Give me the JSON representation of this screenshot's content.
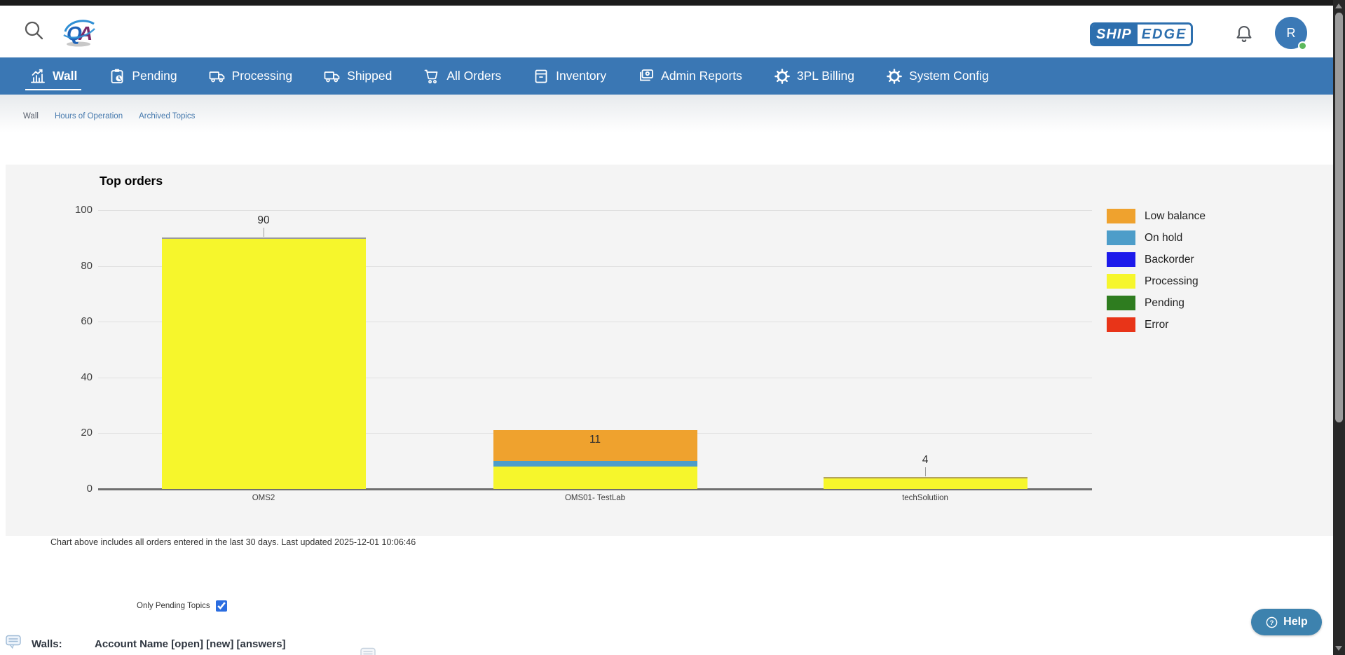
{
  "top_bar": {
    "qa_logo_text": "QA",
    "brand": {
      "ship": "SHIP",
      "edge": "EDGE"
    },
    "avatar": {
      "initial": "R",
      "status": "online"
    }
  },
  "nav": {
    "items": [
      {
        "label": "Wall",
        "icon": "chart-icon",
        "active": true
      },
      {
        "label": "Pending",
        "icon": "clipboard-clock-icon",
        "active": false
      },
      {
        "label": "Processing",
        "icon": "truck-icon",
        "active": false
      },
      {
        "label": "Shipped",
        "icon": "truck-icon",
        "active": false
      },
      {
        "label": "All Orders",
        "icon": "cart-icon",
        "active": false
      },
      {
        "label": "Inventory",
        "icon": "box-icon",
        "active": false
      },
      {
        "label": "Admin Reports",
        "icon": "report-screen-icon",
        "active": false
      },
      {
        "label": "3PL Billing",
        "icon": "gear-icon",
        "active": false
      },
      {
        "label": "System Config",
        "icon": "gear-icon",
        "active": false
      }
    ]
  },
  "breadcrumb": [
    {
      "label": "Wall",
      "link": false
    },
    {
      "label": "Hours of Operation",
      "link": true
    },
    {
      "label": "Archived Topics",
      "link": true
    }
  ],
  "chart_data": {
    "type": "bar",
    "stacked": true,
    "title": "Top orders",
    "categories": [
      "OMS2",
      "OMS01- TestLab",
      "techSolutiion"
    ],
    "series": [
      {
        "name": "Low balance",
        "color": "#EFA22E",
        "values": [
          0,
          11,
          0
        ]
      },
      {
        "name": "On hold",
        "color": "#4D9DC9",
        "values": [
          0,
          2,
          0
        ]
      },
      {
        "name": "Backorder",
        "color": "#1C1AEB",
        "values": [
          0,
          0,
          0
        ]
      },
      {
        "name": "Processing",
        "color": "#F6F62C",
        "values": [
          90,
          8,
          4
        ]
      },
      {
        "name": "Pending",
        "color": "#2E7C1F",
        "values": [
          0,
          0,
          0
        ]
      },
      {
        "name": "Error",
        "color": "#E83418",
        "values": [
          0,
          0,
          0
        ]
      }
    ],
    "stack_order_bottom_up": [
      "Processing",
      "On hold",
      "Low balance",
      "Backorder",
      "Pending",
      "Error"
    ],
    "bar_annotations": [
      "90",
      "11",
      "4"
    ],
    "annotation_placements": [
      "above",
      "inside",
      "above"
    ],
    "bar_top_borders": [
      "#9a9a9a",
      null,
      "#b3a35e"
    ],
    "ylim": [
      0,
      100
    ],
    "yticks": [
      0,
      20,
      40,
      60,
      80,
      100
    ],
    "grid": true,
    "legend_position": "right",
    "plot_background": "#f4f4f4"
  },
  "chart_note": "Chart above includes all orders entered in the last 30 days. Last updated 2025-12-01 10:06:46",
  "filters": {
    "only_pending_label": "Only Pending Topics",
    "only_pending_checked": true
  },
  "walls_section": {
    "label": "Walls:",
    "header": "Account Name [open] [new] [answers]"
  },
  "help_button": {
    "label": "Help"
  },
  "colors": {
    "navbar": "#3a77b4",
    "link": "#4579ad",
    "help_button": "#3d82ae",
    "avatar": "#3b79b6",
    "checkbox_accent": "#2b6de0",
    "panel_background": "#f4f4f4",
    "gridline": "#e0e0e0",
    "axis_baseline": "#6f6f6f",
    "scrollbar_track": "#282828",
    "scrollbar_thumb": "#9c9c9c"
  }
}
